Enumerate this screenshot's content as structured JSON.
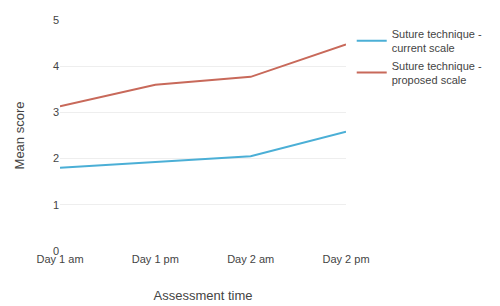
{
  "chart_data": {
    "type": "line",
    "xlabel": "Assessment time",
    "ylabel": "Mean score",
    "categories": [
      "Day 1 am",
      "Day 1 pm",
      "Day 2 am",
      "Day 2 pm"
    ],
    "series": [
      {
        "name": "Suture technique -\ncurrent scale",
        "color": "#4bafd6",
        "values": [
          1.8,
          1.92,
          2.05,
          2.58
        ]
      },
      {
        "name": "Suture technique -\nproposed scale",
        "color": "#c8695a",
        "values": [
          3.13,
          3.6,
          3.77,
          4.47
        ]
      }
    ],
    "ylim": [
      0,
      5
    ],
    "yticks": [
      0,
      1,
      2,
      3,
      4,
      5
    ],
    "grid": true,
    "legend": "right"
  }
}
